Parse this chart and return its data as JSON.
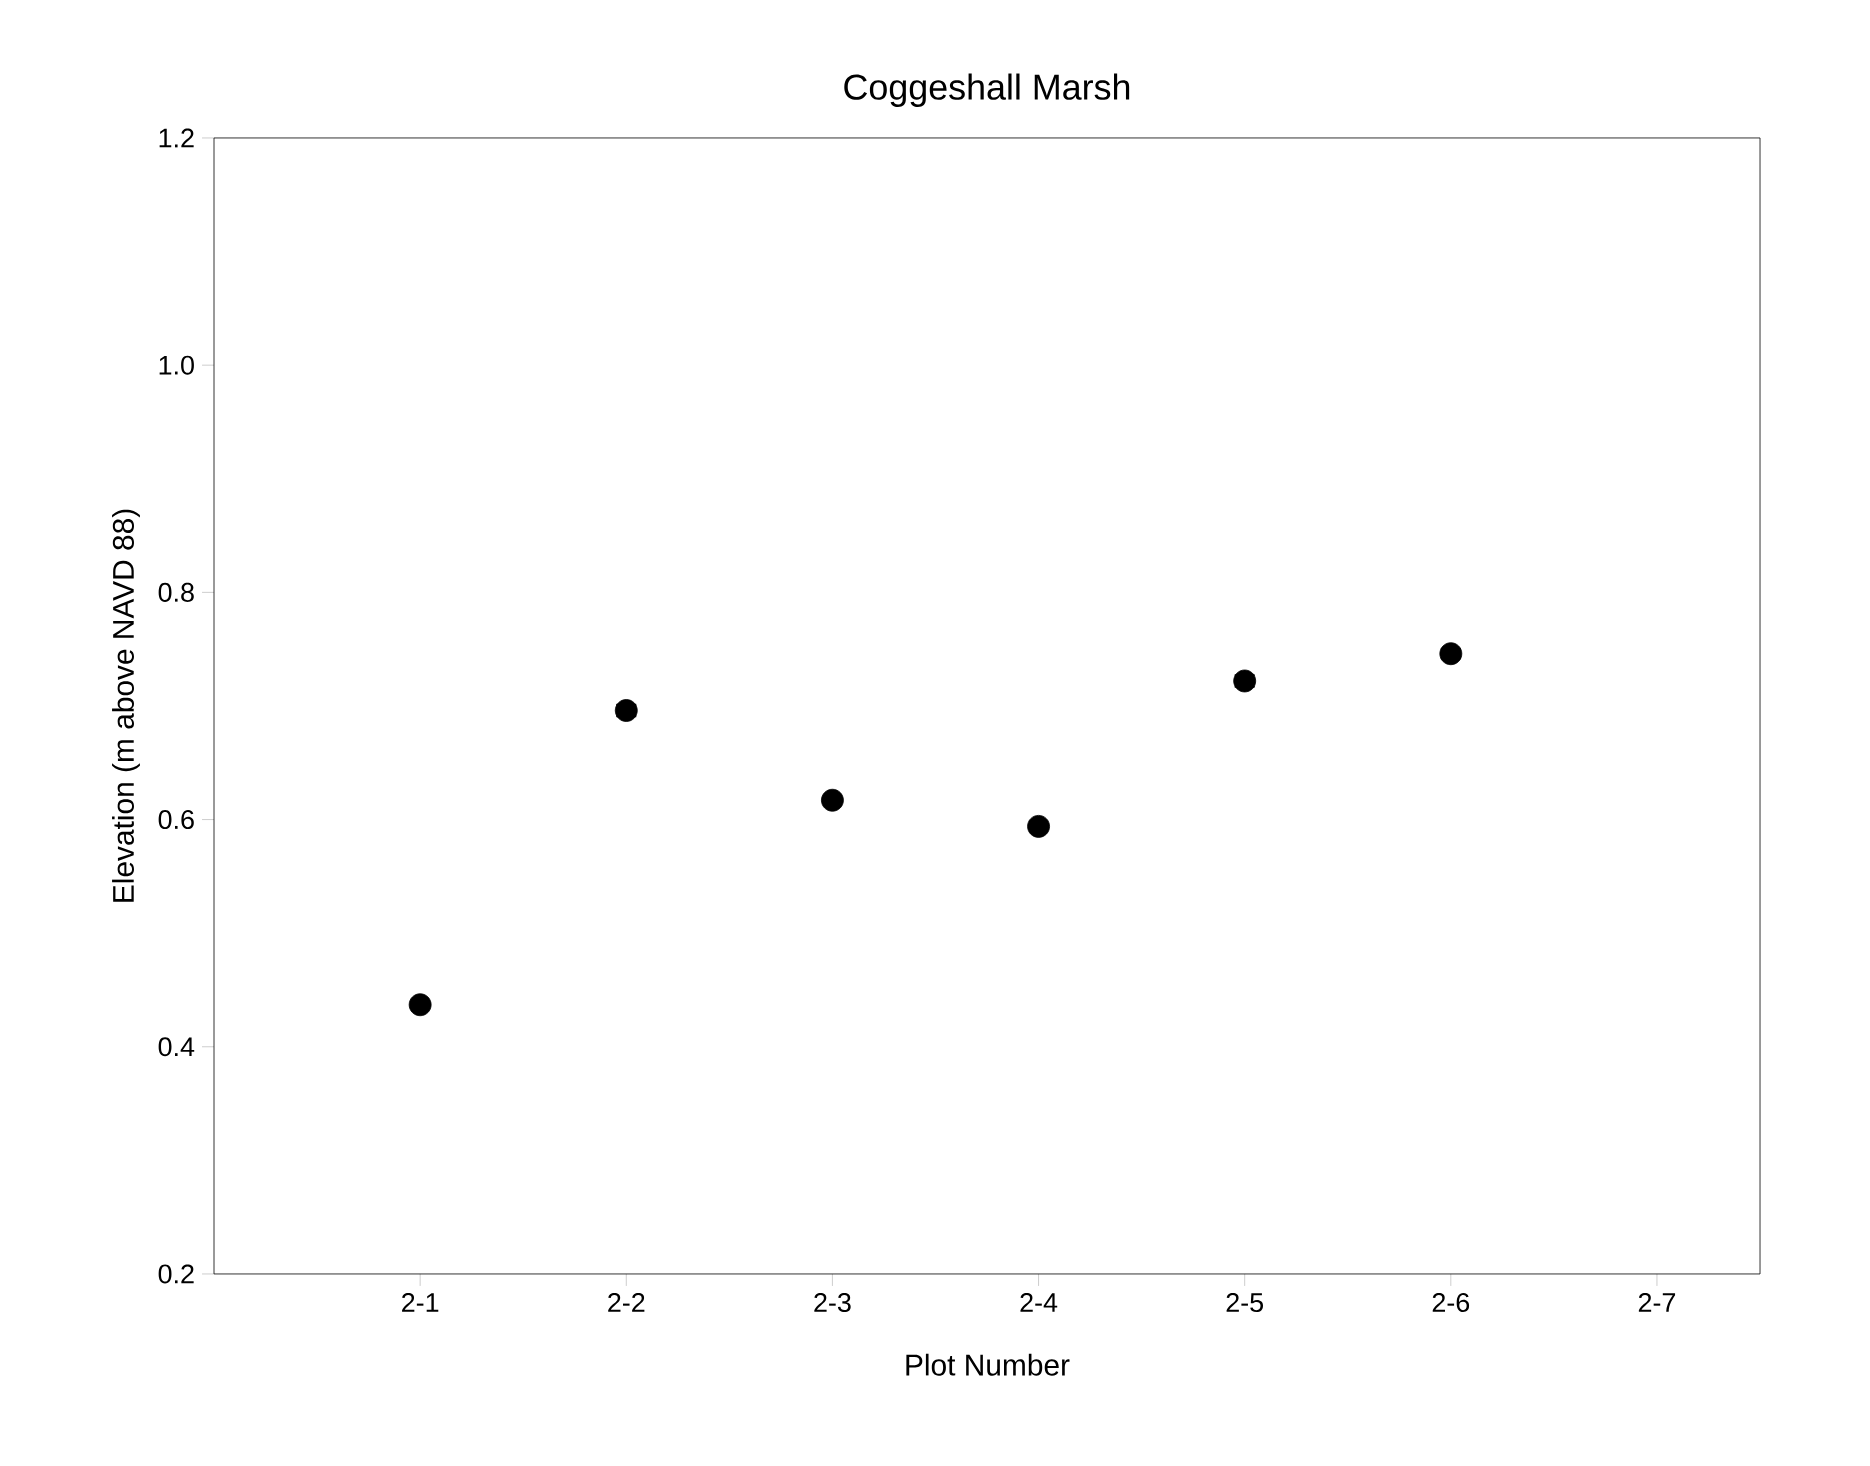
{
  "chart_data": {
    "type": "scatter",
    "title": "Coggeshall Marsh",
    "xlabel": "Plot Number",
    "ylabel": "Elevation (m above NAVD 88)",
    "categories": [
      "2-1",
      "2-2",
      "2-3",
      "2-4",
      "2-5",
      "2-6",
      "2-7"
    ],
    "values": [
      0.437,
      0.696,
      0.617,
      0.594,
      0.722,
      0.746,
      null
    ],
    "errors": [
      null,
      0.005,
      null,
      null,
      0.005,
      0.004,
      null
    ],
    "color": "#000000",
    "marker": "circle",
    "ylim": [
      0.2,
      1.2
    ],
    "yticks": [
      0.2,
      0.4,
      0.6,
      0.8,
      {
        "value": 1.0,
        "label": "1.0"
      },
      1.2
    ]
  }
}
